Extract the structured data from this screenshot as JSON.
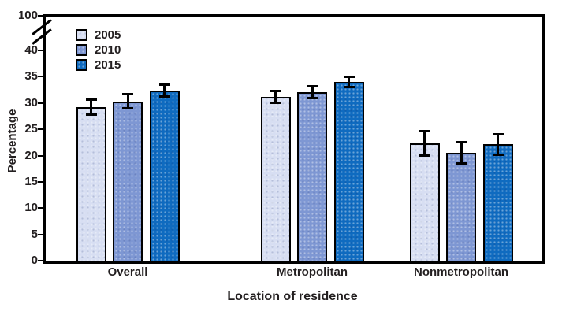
{
  "chart_data": {
    "type": "bar",
    "title": "",
    "categories": [
      "Overall",
      "Metropolitan",
      "Nonmetropolitan"
    ],
    "series": [
      {
        "name": "2005",
        "color": "#d7def2",
        "values": [
          29.2,
          31.2,
          22.3
        ],
        "errors": [
          1.5,
          1.2,
          2.4
        ]
      },
      {
        "name": "2010",
        "color": "#7e97d3",
        "values": [
          30.3,
          32.0,
          20.5
        ],
        "errors": [
          1.4,
          1.2,
          2.1
        ]
      },
      {
        "name": "2015",
        "color": "#0f6bc0",
        "values": [
          32.3,
          34.0,
          22.1
        ],
        "errors": [
          1.2,
          1.1,
          2.0
        ]
      }
    ],
    "ylabel": "Percentage",
    "xlabel": "Location of residence",
    "yticks": [
      100,
      40,
      35,
      30,
      25,
      20,
      15,
      10,
      5,
      0
    ],
    "ylim": [
      0,
      40
    ],
    "y_axis_break": {
      "present": true,
      "between": [
        40,
        100
      ]
    },
    "error_bars": true,
    "legend_position": "top-left-inside",
    "grid": false,
    "colors": {
      "axis": "#000000",
      "text": "#231f20",
      "background": "#ffffff"
    }
  }
}
